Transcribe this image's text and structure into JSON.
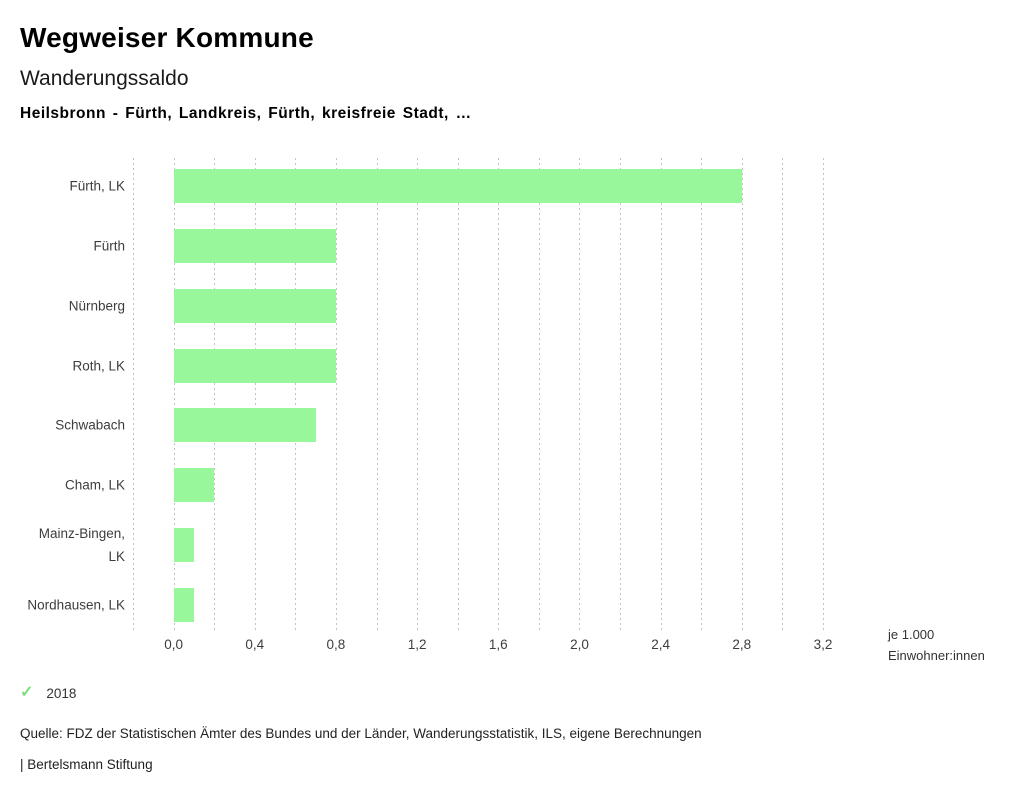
{
  "header": {
    "title": "Wegweiser Kommune",
    "subtitle": "Wanderungssaldo",
    "description": "Heilsbronn - Fürth, Landkreis, Fürth, kreisfreie Stadt, …"
  },
  "chart_data": {
    "type": "bar",
    "orientation": "horizontal",
    "title": "Wanderungssaldo",
    "categories": [
      "Fürth, LK",
      "Fürth",
      "Nürnberg",
      "Roth, LK",
      "Schwabach",
      "Cham, LK",
      "Mainz-Bingen, LK",
      "Nordhausen, LK"
    ],
    "category_display": [
      "Fürth, LK",
      "Fürth",
      "Nürnberg",
      "Roth, LK",
      "Schwabach",
      "Cham, LK",
      "Mainz-Bingen,\nLK",
      "Nordhausen, LK"
    ],
    "series": [
      {
        "name": "2018",
        "values": [
          2.8,
          0.8,
          0.8,
          0.8,
          0.7,
          0.2,
          0.1,
          0.1
        ]
      }
    ],
    "xlim": [
      -0.2,
      3.2
    ],
    "grid_interval": 0.2,
    "grid": true,
    "x_ticks": [
      0.0,
      0.4,
      0.8,
      1.2,
      1.6,
      2.0,
      2.4,
      2.8,
      3.2
    ],
    "x_tick_labels": [
      "0,0",
      "0,4",
      "0,8",
      "1,2",
      "1,6",
      "2,0",
      "2,4",
      "2,8",
      "3,2"
    ],
    "xlabel": "je 1.000 Einwohner:innen",
    "unit_label_line1": "je 1.000",
    "unit_label_line2": "Einwohner:innen",
    "ylabel": "",
    "bar_color": "#98f69b",
    "legend_position": "bottom-left"
  },
  "legend": {
    "check_icon": "✓",
    "check_color": "#7edd7e",
    "year": "2018"
  },
  "footer": {
    "source": "Quelle: FDZ der Statistischen Ämter des Bundes und der Länder, Wanderungsstatistik, ILS, eigene Berechnungen",
    "branding": "| Bertelsmann Stiftung"
  }
}
